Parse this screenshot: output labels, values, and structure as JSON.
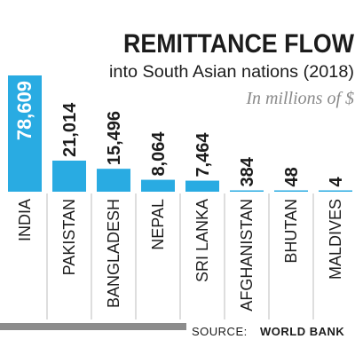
{
  "chart_data": {
    "type": "bar",
    "title": "REMITTANCE FLOW",
    "subtitle": "into South Asian nations (2018)",
    "unit_note": "In millions of $",
    "categories": [
      "INDIA",
      "PAKISTAN",
      "BANGLADESH",
      "NEPAL",
      "SRI LANKA",
      "AFGHANISTAN",
      "BHUTAN",
      "MALDIVES"
    ],
    "values": [
      78609,
      21014,
      15496,
      8064,
      7464,
      384,
      48,
      4
    ],
    "value_labels": [
      "78,609",
      "21,014",
      "15,496",
      "8,064",
      "7,464",
      "384",
      "48",
      "4"
    ],
    "ylim": [
      0,
      78609
    ],
    "grid": false,
    "source_label": "SOURCE:",
    "source_value": "WORLD BANK",
    "colors": {
      "bar": "#29abe2",
      "bar_edge": "#1a8fc4",
      "text": "#1c1c1c",
      "unit_text": "#8a8a8a",
      "divider": "#bdbdbd",
      "source_band": "#8c8c8c"
    }
  }
}
